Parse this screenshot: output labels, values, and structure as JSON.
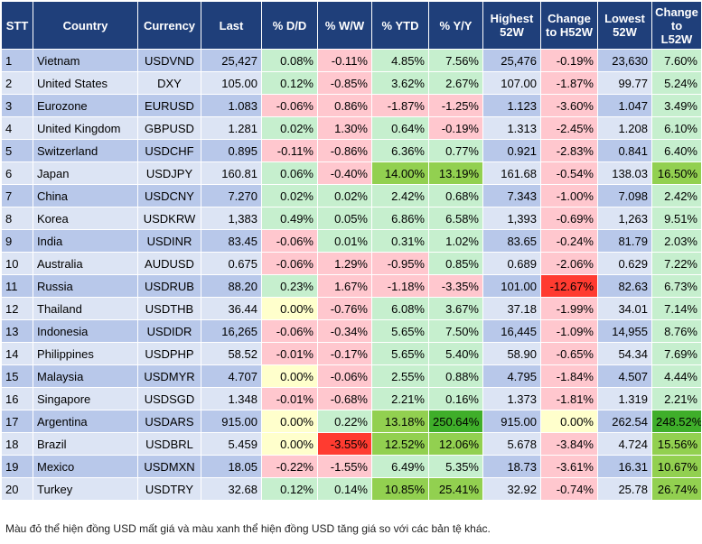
{
  "headers": [
    "STT",
    "Country",
    "Currency",
    "Last",
    "% D/D",
    "% W/W",
    "% YTD",
    "% Y/Y",
    "Highest 52W",
    "Change to H52W",
    "Lowest 52W",
    "Change to L52W"
  ],
  "rows": [
    {
      "stt": "1",
      "country": "Vietnam",
      "currency": "USDVND",
      "last": "25,427",
      "dd": "0.08%",
      "ww": "-0.11%",
      "ytd": "4.85%",
      "yy": "7.56%",
      "high": "25,476",
      "chh": "-0.19%",
      "low": "23,630",
      "chl": "7.60%"
    },
    {
      "stt": "2",
      "country": "United States",
      "currency": "DXY",
      "last": "105.00",
      "dd": "0.12%",
      "ww": "-0.85%",
      "ytd": "3.62%",
      "yy": "2.67%",
      "high": "107.00",
      "chh": "-1.87%",
      "low": "99.77",
      "chl": "5.24%"
    },
    {
      "stt": "3",
      "country": "Eurozone",
      "currency": "EURUSD",
      "last": "1.083",
      "dd": "-0.06%",
      "ww": "0.86%",
      "ytd": "-1.87%",
      "yy": "-1.25%",
      "high": "1.123",
      "chh": "-3.60%",
      "low": "1.047",
      "chl": "3.49%"
    },
    {
      "stt": "4",
      "country": "United Kingdom",
      "currency": "GBPUSD",
      "last": "1.281",
      "dd": "0.02%",
      "ww": "1.30%",
      "ytd": "0.64%",
      "yy": "-0.19%",
      "high": "1.313",
      "chh": "-2.45%",
      "low": "1.208",
      "chl": "6.10%"
    },
    {
      "stt": "5",
      "country": "Switzerland",
      "currency": "USDCHF",
      "last": "0.895",
      "dd": "-0.11%",
      "ww": "-0.86%",
      "ytd": "6.36%",
      "yy": "0.77%",
      "high": "0.921",
      "chh": "-2.83%",
      "low": "0.841",
      "chl": "6.40%"
    },
    {
      "stt": "6",
      "country": "Japan",
      "currency": "USDJPY",
      "last": "160.81",
      "dd": "0.06%",
      "ww": "-0.40%",
      "ytd": "14.00%",
      "yy": "13.19%",
      "high": "161.68",
      "chh": "-0.54%",
      "low": "138.03",
      "chl": "16.50%"
    },
    {
      "stt": "7",
      "country": "China",
      "currency": "USDCNY",
      "last": "7.270",
      "dd": "0.02%",
      "ww": "0.02%",
      "ytd": "2.42%",
      "yy": "0.68%",
      "high": "7.343",
      "chh": "-1.00%",
      "low": "7.098",
      "chl": "2.42%"
    },
    {
      "stt": "8",
      "country": "Korea",
      "currency": "USDKRW",
      "last": "1,383",
      "dd": "0.49%",
      "ww": "0.05%",
      "ytd": "6.86%",
      "yy": "6.58%",
      "high": "1,393",
      "chh": "-0.69%",
      "low": "1,263",
      "chl": "9.51%"
    },
    {
      "stt": "9",
      "country": "India",
      "currency": "USDINR",
      "last": "83.45",
      "dd": "-0.06%",
      "ww": "0.01%",
      "ytd": "0.31%",
      "yy": "1.02%",
      "high": "83.65",
      "chh": "-0.24%",
      "low": "81.79",
      "chl": "2.03%"
    },
    {
      "stt": "10",
      "country": "Australia",
      "currency": "AUDUSD",
      "last": "0.675",
      "dd": "-0.06%",
      "ww": "1.29%",
      "ytd": "-0.95%",
      "yy": "0.85%",
      "high": "0.689",
      "chh": "-2.06%",
      "low": "0.629",
      "chl": "7.22%"
    },
    {
      "stt": "11",
      "country": "Russia",
      "currency": "USDRUB",
      "last": "88.20",
      "dd": "0.23%",
      "ww": "1.67%",
      "ytd": "-1.18%",
      "yy": "-3.35%",
      "high": "101.00",
      "chh": "-12.67%",
      "low": "82.63",
      "chl": "6.73%"
    },
    {
      "stt": "12",
      "country": "Thailand",
      "currency": "USDTHB",
      "last": "36.44",
      "dd": "0.00%",
      "ww": "-0.76%",
      "ytd": "6.08%",
      "yy": "3.67%",
      "high": "37.18",
      "chh": "-1.99%",
      "low": "34.01",
      "chl": "7.14%"
    },
    {
      "stt": "13",
      "country": "Indonesia",
      "currency": "USDIDR",
      "last": "16,265",
      "dd": "-0.06%",
      "ww": "-0.34%",
      "ytd": "5.65%",
      "yy": "7.50%",
      "high": "16,445",
      "chh": "-1.09%",
      "low": "14,955",
      "chl": "8.76%"
    },
    {
      "stt": "14",
      "country": "Philippines",
      "currency": "USDPHP",
      "last": "58.52",
      "dd": "-0.01%",
      "ww": "-0.17%",
      "ytd": "5.65%",
      "yy": "5.40%",
      "high": "58.90",
      "chh": "-0.65%",
      "low": "54.34",
      "chl": "7.69%"
    },
    {
      "stt": "15",
      "country": "Malaysia",
      "currency": "USDMYR",
      "last": "4.707",
      "dd": "0.00%",
      "ww": "-0.06%",
      "ytd": "2.55%",
      "yy": "0.88%",
      "high": "4.795",
      "chh": "-1.84%",
      "low": "4.507",
      "chl": "4.44%"
    },
    {
      "stt": "16",
      "country": "Singapore",
      "currency": "USDSGD",
      "last": "1.348",
      "dd": "-0.01%",
      "ww": "-0.68%",
      "ytd": "2.21%",
      "yy": "0.16%",
      "high": "1.373",
      "chh": "-1.81%",
      "low": "1.319",
      "chl": "2.21%"
    },
    {
      "stt": "17",
      "country": "Argentina",
      "currency": "USDARS",
      "last": "915.00",
      "dd": "0.00%",
      "ww": "0.22%",
      "ytd": "13.18%",
      "yy": "250.64%",
      "high": "915.00",
      "chh": "0.00%",
      "low": "262.54",
      "chl": "248.52%"
    },
    {
      "stt": "18",
      "country": "Brazil",
      "currency": "USDBRL",
      "last": "5.459",
      "dd": "0.00%",
      "ww": "-3.55%",
      "ytd": "12.52%",
      "yy": "12.06%",
      "high": "5.678",
      "chh": "-3.84%",
      "low": "4.724",
      "chl": "15.56%"
    },
    {
      "stt": "19",
      "country": "Mexico",
      "currency": "USDMXN",
      "last": "18.05",
      "dd": "-0.22%",
      "ww": "-1.55%",
      "ytd": "6.49%",
      "yy": "5.35%",
      "high": "18.73",
      "chh": "-3.61%",
      "low": "16.31",
      "chl": "10.67%"
    },
    {
      "stt": "20",
      "country": "Turkey",
      "currency": "USDTRY",
      "last": "32.68",
      "dd": "0.12%",
      "ww": "0.14%",
      "ytd": "10.85%",
      "yy": "25.41%",
      "high": "32.92",
      "chh": "-0.74%",
      "low": "25.78",
      "chl": "26.74%"
    }
  ],
  "footnote": "Màu đỏ thể hiện đồng USD mất giá và màu xanh thể hiện đồng USD tăng giá so với các bản tệ khác.",
  "colors": {
    "header_bg": "#1f3f7a",
    "row_odd": "#b8c8ea",
    "row_even": "#dce4f4",
    "light_red": "#ffc7ce",
    "light_green": "#c6efce",
    "mid_green": "#92d050",
    "dark_green": "#3fae2a",
    "yellow": "#ffffcc",
    "red": "#ff3b30"
  }
}
